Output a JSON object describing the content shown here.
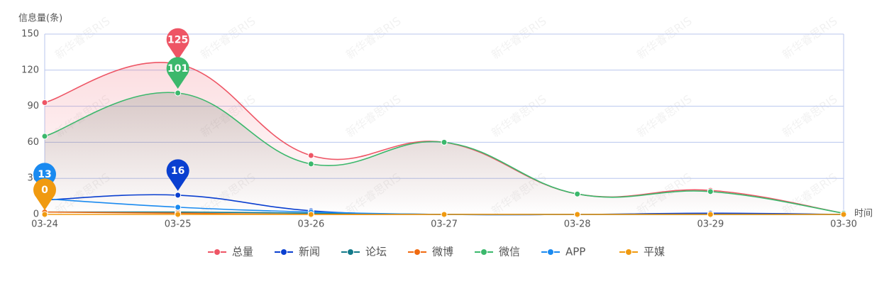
{
  "chart_data": {
    "type": "line",
    "smooth": true,
    "grid": true,
    "y_label": "信息量(条)",
    "x_label": "时间",
    "watermark": "新华睿思RIS",
    "categories": [
      "03-24",
      "03-25",
      "03-26",
      "03-27",
      "03-28",
      "03-29",
      "03-30"
    ],
    "ylim": [
      0,
      150
    ],
    "yticks": [
      0,
      30,
      60,
      90,
      120,
      150
    ],
    "legend": "bottom",
    "series": [
      {
        "name": "总量",
        "color": "#ee5565",
        "area": true,
        "markpoint": true,
        "values": [
          93,
          125,
          49,
          60,
          17,
          20,
          1
        ]
      },
      {
        "name": "新闻",
        "color": "#0a3fd0",
        "markpoint": true,
        "values": [
          12,
          16,
          3,
          0,
          0,
          1,
          0
        ]
      },
      {
        "name": "论坛",
        "color": "#127a8a",
        "values": [
          2,
          2,
          1,
          0,
          0,
          0,
          0
        ]
      },
      {
        "name": "微博",
        "color": "#f06a10",
        "values": [
          2,
          1,
          0,
          0,
          0,
          0,
          0
        ]
      },
      {
        "name": "微信",
        "color": "#3bb86c",
        "area": true,
        "markpoint": true,
        "values": [
          65,
          101,
          42,
          60,
          17,
          19,
          1
        ]
      },
      {
        "name": "APP",
        "color": "#1a8af0",
        "markpoint": true,
        "values": [
          13,
          6,
          2,
          0,
          0,
          0,
          0
        ]
      },
      {
        "name": "平媒",
        "color": "#f09a10",
        "markpoint": true,
        "values": [
          0,
          0,
          0,
          0,
          0,
          0,
          0
        ]
      }
    ]
  }
}
